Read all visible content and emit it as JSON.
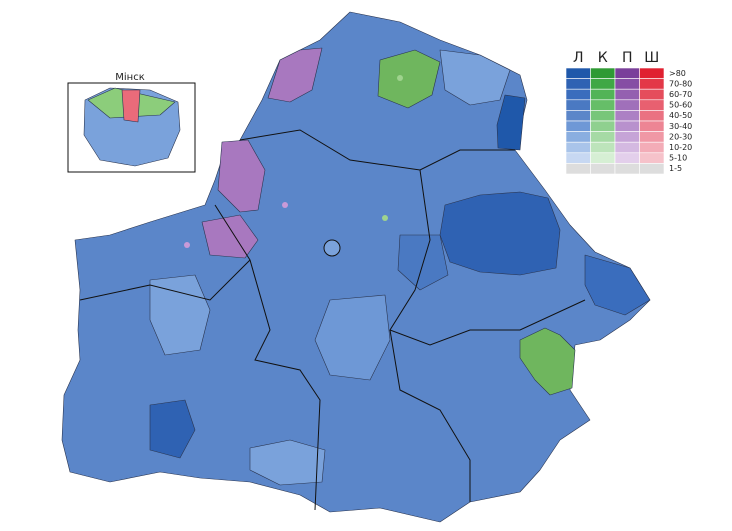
{
  "inset": {
    "title": "Мінск"
  },
  "legend": {
    "columns": [
      "Л",
      "К",
      "П",
      "Ш"
    ],
    "ranges": [
      ">80",
      "70-80",
      "60-70",
      "50-60",
      "40-50",
      "30-40",
      "20-30",
      "10-20",
      "5-10",
      "1-5"
    ]
  }
}
